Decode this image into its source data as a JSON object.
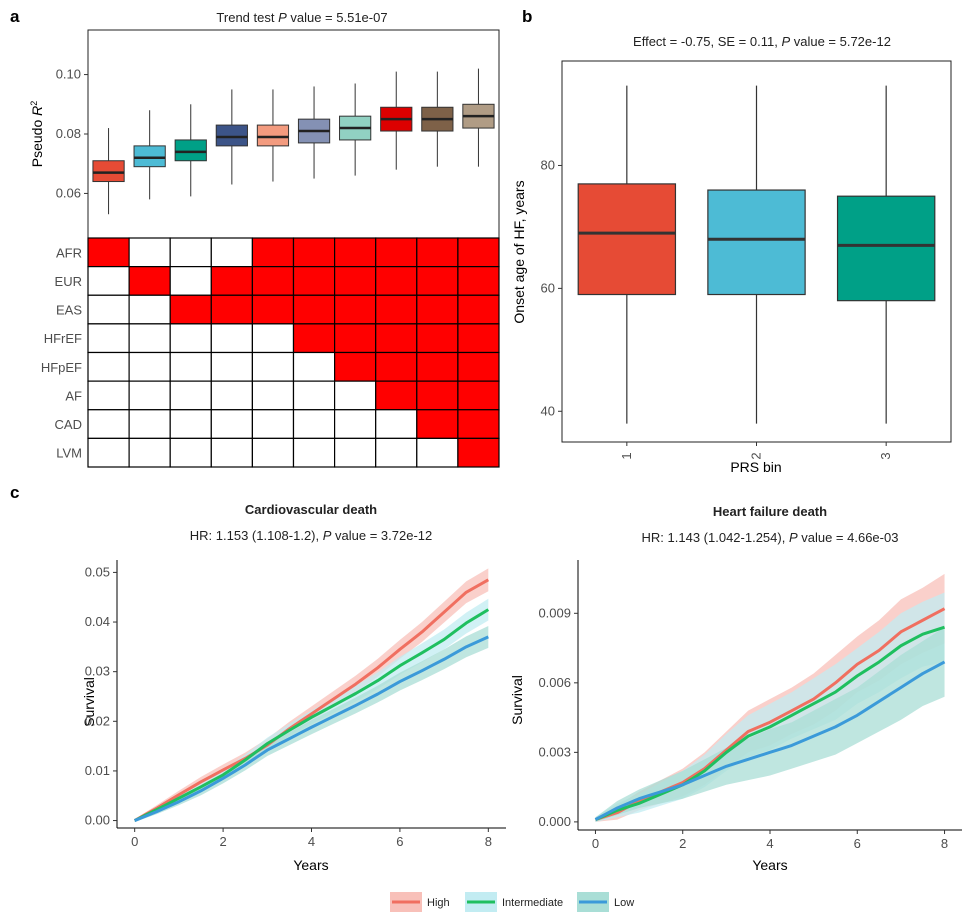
{
  "panel_letters": {
    "a": "a",
    "b": "b",
    "c": "c"
  },
  "chart_data": [
    {
      "id": "a_box",
      "type": "box",
      "title_prefix": "Trend test ",
      "title_italic": "P",
      "title_suffix": " value = 5.51e-07",
      "ylabel_main": "Pseudo ",
      "ylabel_italic": "R",
      "ylabel_sup": "2",
      "ylim": [
        0.045,
        0.115
      ],
      "yticks": [
        0.06,
        0.08,
        0.1
      ],
      "ytick_labels": [
        "0.06",
        "0.08",
        "0.10"
      ],
      "boxes": [
        {
          "color": "#e64b35",
          "whislo": 0.053,
          "q1": 0.064,
          "med": 0.067,
          "q3": 0.071,
          "whishi": 0.082
        },
        {
          "color": "#4dbbd5",
          "whislo": 0.058,
          "q1": 0.069,
          "med": 0.072,
          "q3": 0.076,
          "whishi": 0.088
        },
        {
          "color": "#00a087",
          "whislo": 0.059,
          "q1": 0.071,
          "med": 0.074,
          "q3": 0.078,
          "whishi": 0.09
        },
        {
          "color": "#3c5488",
          "whislo": 0.063,
          "q1": 0.076,
          "med": 0.079,
          "q3": 0.083,
          "whishi": 0.095
        },
        {
          "color": "#f39b7f",
          "whislo": 0.064,
          "q1": 0.076,
          "med": 0.079,
          "q3": 0.083,
          "whishi": 0.095
        },
        {
          "color": "#8491b4",
          "whislo": 0.065,
          "q1": 0.077,
          "med": 0.081,
          "q3": 0.085,
          "whishi": 0.096
        },
        {
          "color": "#91d1c2",
          "whislo": 0.066,
          "q1": 0.078,
          "med": 0.082,
          "q3": 0.086,
          "whishi": 0.097
        },
        {
          "color": "#dc0000",
          "whislo": 0.068,
          "q1": 0.081,
          "med": 0.085,
          "q3": 0.089,
          "whishi": 0.101
        },
        {
          "color": "#7e6148",
          "whislo": 0.069,
          "q1": 0.081,
          "med": 0.085,
          "q3": 0.089,
          "whishi": 0.101
        },
        {
          "color": "#b09c85",
          "whislo": 0.069,
          "q1": 0.082,
          "med": 0.086,
          "q3": 0.09,
          "whishi": 0.102
        }
      ]
    },
    {
      "id": "a_grid",
      "type": "heatmap",
      "row_labels": [
        "AFR",
        "EUR",
        "EAS",
        "HFrEF",
        "HFpEF",
        "AF",
        "CAD",
        "LVM"
      ],
      "fill_color": "#ff0000",
      "empty_color": "#ffffff",
      "cells": [
        [
          1,
          0,
          0,
          0,
          1,
          1,
          1,
          1,
          1,
          1
        ],
        [
          0,
          1,
          0,
          1,
          1,
          1,
          1,
          1,
          1,
          1
        ],
        [
          0,
          0,
          1,
          1,
          1,
          1,
          1,
          1,
          1,
          1
        ],
        [
          0,
          0,
          0,
          0,
          0,
          1,
          1,
          1,
          1,
          1
        ],
        [
          0,
          0,
          0,
          0,
          0,
          0,
          1,
          1,
          1,
          1
        ],
        [
          0,
          0,
          0,
          0,
          0,
          0,
          0,
          1,
          1,
          1
        ],
        [
          0,
          0,
          0,
          0,
          0,
          0,
          0,
          0,
          1,
          1
        ],
        [
          0,
          0,
          0,
          0,
          0,
          0,
          0,
          0,
          0,
          1
        ]
      ]
    },
    {
      "id": "b_box",
      "type": "box",
      "title_prefix": "Effect = -0.75, SE = 0.11, ",
      "title_italic": "P",
      "title_suffix": " value = 5.72e-12",
      "ylabel": "Onset age of HF, years",
      "xlabel": "PRS bin",
      "ylim": [
        35,
        97
      ],
      "yticks": [
        40,
        60,
        80
      ],
      "ytick_labels": [
        "40",
        "60",
        "80"
      ],
      "categories": [
        "1",
        "2",
        "3"
      ],
      "boxes": [
        {
          "color": "#e64b35",
          "whislo": 38,
          "q1": 59,
          "med": 69,
          "q3": 77,
          "whishi": 93
        },
        {
          "color": "#4dbbd5",
          "whislo": 38,
          "q1": 59,
          "med": 68,
          "q3": 76,
          "whishi": 93
        },
        {
          "color": "#00a087",
          "whislo": 38,
          "q1": 58,
          "med": 67,
          "q3": 75,
          "whishi": 93
        }
      ]
    },
    {
      "id": "c_cv",
      "type": "line",
      "title": "Cardiovascular death",
      "subtitle_prefix": "HR: 1.153 (1.108-1.2), ",
      "subtitle_italic": "P",
      "subtitle_suffix": " value = 3.72e-12",
      "xlabel": "Years",
      "ylabel": "Survival",
      "xlim": [
        -0.4,
        8.4
      ],
      "ylim": [
        -0.0015,
        0.0525
      ],
      "xticks": [
        0,
        2,
        4,
        6,
        8
      ],
      "xtick_labels": [
        "0",
        "2",
        "4",
        "6",
        "8"
      ],
      "yticks": [
        0,
        0.01,
        0.02,
        0.03,
        0.04,
        0.05
      ],
      "ytick_labels": [
        "0.00",
        "0.01",
        "0.02",
        "0.03",
        "0.04",
        "0.05"
      ],
      "series": [
        {
          "name": "High",
          "color": "#f06f60",
          "band": "#f8c0b9",
          "x": [
            0,
            0.5,
            1,
            1.5,
            2,
            2.5,
            3,
            3.5,
            4,
            4.5,
            5,
            5.5,
            6,
            6.5,
            7,
            7.5,
            8
          ],
          "y": [
            0,
            0.0025,
            0.0052,
            0.0078,
            0.0102,
            0.0125,
            0.0152,
            0.0185,
            0.0215,
            0.0245,
            0.0275,
            0.0308,
            0.0345,
            0.038,
            0.042,
            0.046,
            0.0485
          ],
          "err": [
            0.0003,
            0.0006,
            0.0008,
            0.001,
            0.0011,
            0.0012,
            0.0013,
            0.0014,
            0.0015,
            0.0016,
            0.0017,
            0.0018,
            0.0019,
            0.002,
            0.0021,
            0.0022,
            0.0023
          ]
        },
        {
          "name": "Intermediate",
          "color": "#1fbf5f",
          "band": "#c2ecf2",
          "x": [
            0,
            0.5,
            1,
            1.5,
            2,
            2.5,
            3,
            3.5,
            4,
            4.5,
            5,
            5.5,
            6,
            6.5,
            7,
            7.5,
            8
          ],
          "y": [
            0,
            0.0022,
            0.0045,
            0.0068,
            0.0092,
            0.0122,
            0.0155,
            0.0182,
            0.0208,
            0.0232,
            0.0256,
            0.0282,
            0.0312,
            0.0338,
            0.0365,
            0.0398,
            0.0425
          ],
          "err": [
            0.0003,
            0.0005,
            0.0007,
            0.0009,
            0.001,
            0.0011,
            0.0012,
            0.0013,
            0.0014,
            0.0015,
            0.0016,
            0.0017,
            0.0018,
            0.0019,
            0.002,
            0.0021,
            0.0022
          ]
        },
        {
          "name": "Low",
          "color": "#3b9ad9",
          "band": "#a9ded6",
          "x": [
            0,
            0.5,
            1,
            1.5,
            2,
            2.5,
            3,
            3.5,
            4,
            4.5,
            5,
            5.5,
            6,
            6.5,
            7,
            7.5,
            8
          ],
          "y": [
            0,
            0.0018,
            0.0038,
            0.006,
            0.0085,
            0.0112,
            0.0142,
            0.0165,
            0.0188,
            0.021,
            0.0232,
            0.0255,
            0.028,
            0.0302,
            0.0325,
            0.035,
            0.037
          ],
          "err": [
            0.0003,
            0.0005,
            0.0007,
            0.0009,
            0.001,
            0.0011,
            0.0012,
            0.0013,
            0.0014,
            0.0015,
            0.0016,
            0.0017,
            0.0018,
            0.0019,
            0.002,
            0.0021,
            0.0022
          ]
        }
      ]
    },
    {
      "id": "c_hf",
      "type": "line",
      "title": "Heart failure death",
      "subtitle_prefix": "HR: 1.143 (1.042-1.254), ",
      "subtitle_italic": "P",
      "subtitle_suffix": " value = 4.66e-03",
      "xlabel": "Years",
      "ylabel": "Survival",
      "xlim": [
        -0.4,
        8.4
      ],
      "ylim": [
        -0.00035,
        0.0113
      ],
      "xticks": [
        0,
        2,
        4,
        6,
        8
      ],
      "xtick_labels": [
        "0",
        "2",
        "4",
        "6",
        "8"
      ],
      "yticks": [
        0,
        0.003,
        0.006,
        0.009
      ],
      "ytick_labels": [
        "0.000",
        "0.003",
        "0.006",
        "0.009"
      ],
      "series": [
        {
          "name": "High",
          "color": "#f06f60",
          "band": "#f8c0b9",
          "x": [
            0,
            0.5,
            1,
            1.5,
            2,
            2.5,
            3,
            3.5,
            4,
            4.5,
            5,
            5.5,
            6,
            6.5,
            7,
            7.5,
            8
          ],
          "y": [
            0.0001,
            0.0004,
            0.0009,
            0.0013,
            0.0017,
            0.0023,
            0.0031,
            0.0039,
            0.0043,
            0.0048,
            0.0053,
            0.006,
            0.0068,
            0.0074,
            0.0082,
            0.0087,
            0.0092
          ],
          "err": [
            0.0001,
            0.0003,
            0.0004,
            0.0005,
            0.0006,
            0.0007,
            0.0008,
            0.0009,
            0.001,
            0.001,
            0.0011,
            0.0012,
            0.0012,
            0.0013,
            0.0014,
            0.0014,
            0.0015
          ]
        },
        {
          "name": "Intermediate",
          "color": "#1fbf5f",
          "band": "#c2ecf2",
          "x": [
            0,
            0.5,
            1,
            1.5,
            2,
            2.5,
            3,
            3.5,
            4,
            4.5,
            5,
            5.5,
            6,
            6.5,
            7,
            7.5,
            8
          ],
          "y": [
            0.0001,
            0.0005,
            0.0008,
            0.0012,
            0.0016,
            0.0022,
            0.003,
            0.0037,
            0.0041,
            0.0046,
            0.0051,
            0.0056,
            0.0063,
            0.0069,
            0.0076,
            0.0081,
            0.0084
          ],
          "err": [
            0.0001,
            0.0003,
            0.0004,
            0.0005,
            0.0006,
            0.0007,
            0.0008,
            0.0009,
            0.001,
            0.001,
            0.0011,
            0.0012,
            0.0012,
            0.0013,
            0.0014,
            0.0014,
            0.0015
          ]
        },
        {
          "name": "Low",
          "color": "#3b9ad9",
          "band": "#a9ded6",
          "x": [
            0,
            0.5,
            1,
            1.5,
            2,
            2.5,
            3,
            3.5,
            4,
            4.5,
            5,
            5.5,
            6,
            6.5,
            7,
            7.5,
            8
          ],
          "y": [
            0.0001,
            0.0006,
            0.001,
            0.0013,
            0.0016,
            0.002,
            0.0024,
            0.0027,
            0.003,
            0.0033,
            0.0037,
            0.0041,
            0.0046,
            0.0052,
            0.0058,
            0.0064,
            0.0069
          ],
          "err": [
            0.0001,
            0.0003,
            0.0004,
            0.0005,
            0.0006,
            0.0007,
            0.0008,
            0.0009,
            0.001,
            0.001,
            0.0011,
            0.0012,
            0.0012,
            0.0013,
            0.0014,
            0.0014,
            0.0015
          ]
        }
      ]
    }
  ],
  "legend": [
    {
      "label": "High",
      "color": "#f06f60",
      "band": "#f8c0b9"
    },
    {
      "label": "Intermediate",
      "color": "#1fbf5f",
      "band": "#c2ecf2"
    },
    {
      "label": "Low",
      "color": "#3b9ad9",
      "band": "#a9ded6"
    }
  ]
}
